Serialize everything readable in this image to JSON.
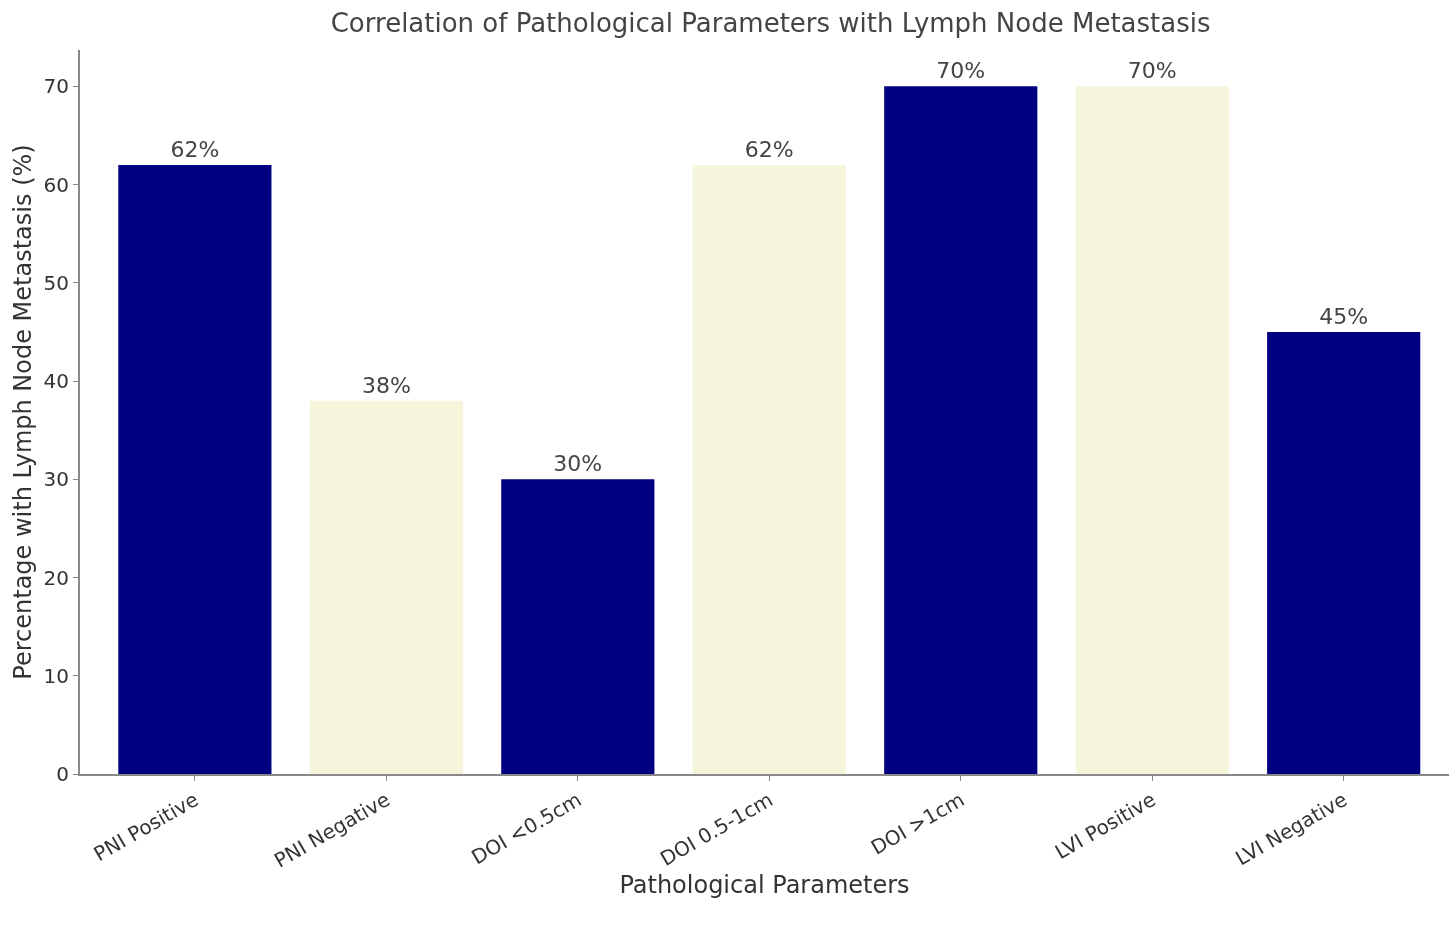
{
  "chart_data": {
    "type": "bar",
    "title": "Correlation of Pathological Parameters with Lymph Node Metastasis",
    "xlabel": "Pathological Parameters",
    "ylabel": "Percentage with Lymph Node Metastasis (%)",
    "categories": [
      "PNI Positive",
      "PNI Negative",
      "DOI <0.5cm",
      "DOI 0.5-1cm",
      "DOI >1cm",
      "LVI Positive",
      "LVI Negative"
    ],
    "values": [
      62,
      38,
      30,
      62,
      70,
      70,
      45
    ],
    "value_labels": [
      "62%",
      "38%",
      "30%",
      "62%",
      "70%",
      "70%",
      "45%"
    ],
    "colors": [
      "#000080",
      "#f5f5dc",
      "#000080",
      "#f5f5dc",
      "#000080",
      "#f5f5dc",
      "#000080"
    ],
    "ylim": [
      0,
      73.7
    ],
    "yticks": [
      0,
      10,
      20,
      30,
      40,
      50,
      60,
      70
    ]
  }
}
